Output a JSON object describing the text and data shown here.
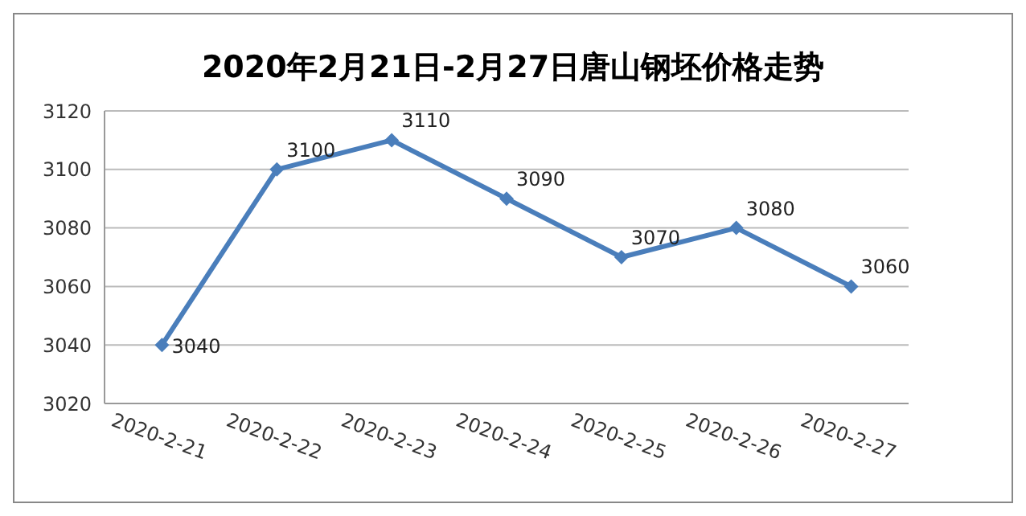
{
  "chart_data": {
    "type": "line",
    "title": "2020年2月21日-2月27日唐山钢坯价格走势",
    "categories": [
      "2020-2-21",
      "2020-2-22",
      "2020-2-23",
      "2020-2-24",
      "2020-2-25",
      "2020-2-26",
      "2020-2-27"
    ],
    "series": [
      {
        "color": "#4a7ebb",
        "values": [
          3040,
          3100,
          3110,
          3090,
          3070,
          3080,
          3060
        ]
      }
    ],
    "ylim": [
      3020,
      3120
    ],
    "yticks": [
      3020,
      3040,
      3060,
      3080,
      3100,
      3120
    ],
    "grid": "y",
    "legend": false,
    "marker": "diamond",
    "line_style": "solid",
    "data_labels": true
  }
}
